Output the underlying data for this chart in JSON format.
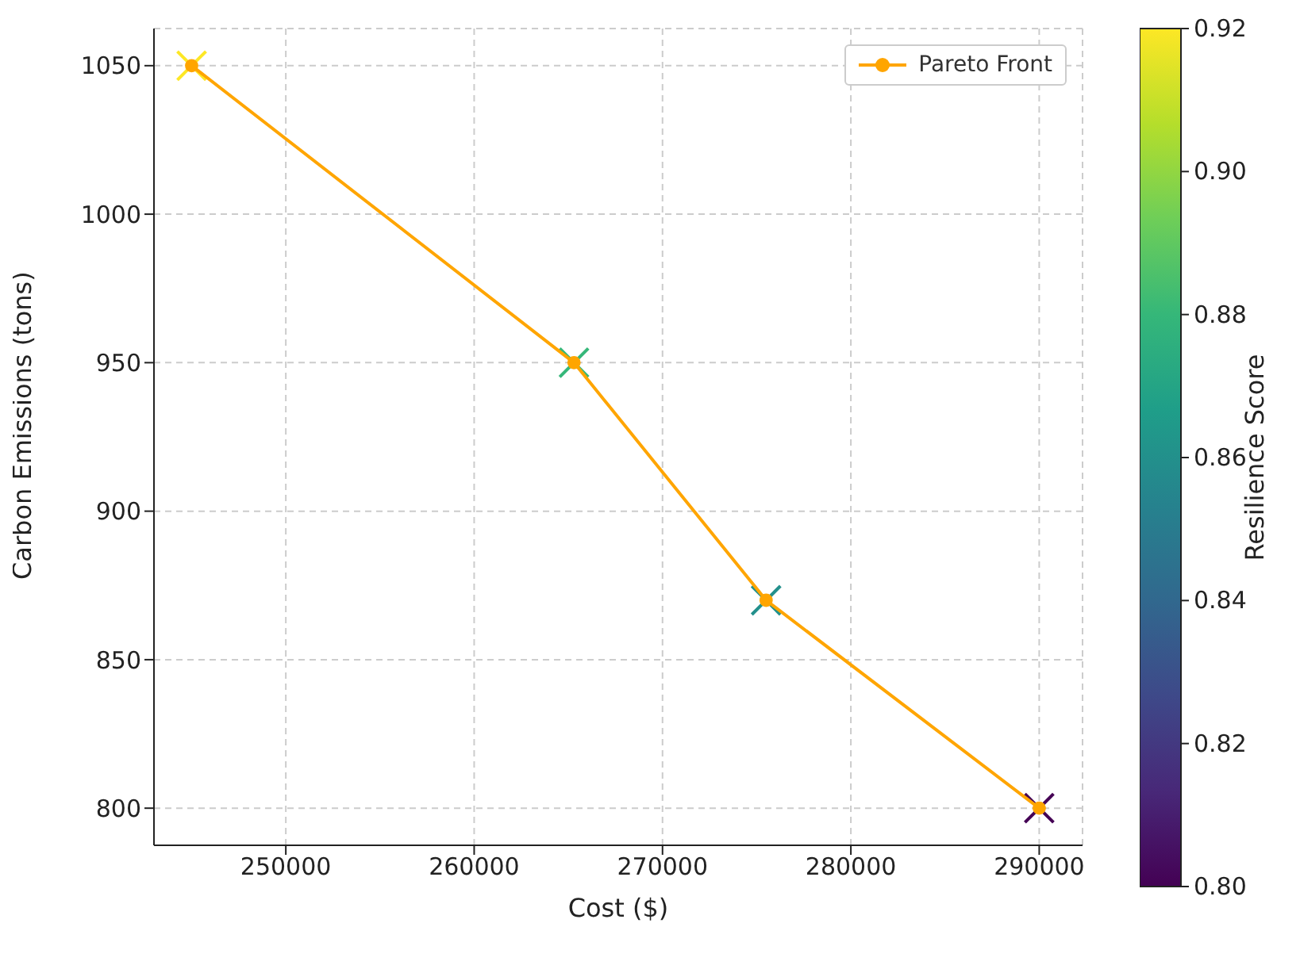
{
  "chart_data": {
    "type": "line",
    "xlabel": "Cost ($)",
    "ylabel": "Carbon Emissions (tons)",
    "clabel": "Resilience Score",
    "x": [
      245000,
      265300,
      275500,
      290000
    ],
    "series": [
      {
        "name": "Pareto Front",
        "type": "line",
        "color": "#ffa500",
        "marker": "circle",
        "values": [
          1050,
          950,
          870,
          800
        ]
      },
      {
        "type": "scatter",
        "marker": "cross",
        "colors": [
          "#fde725",
          "#35b779",
          "#21918c",
          "#440154"
        ],
        "values": [
          1050,
          950,
          870,
          800
        ],
        "cvalues": [
          0.92,
          0.88,
          0.86,
          0.8
        ]
      }
    ],
    "xlim": [
      243000,
      292300
    ],
    "xticks": [
      250000,
      260000,
      270000,
      280000,
      290000
    ],
    "ylim": [
      787.5,
      1062.5
    ],
    "yticks": [
      800,
      850,
      900,
      950,
      1000,
      1050
    ],
    "clim": [
      0.8,
      0.92
    ],
    "cticks": [
      {
        "value": 0.8,
        "label": "0.80"
      },
      0.82,
      0.84,
      0.86,
      0.88,
      {
        "value": 0.9,
        "label": "0.90"
      },
      0.92
    ],
    "grid": true,
    "legend": "top right"
  }
}
